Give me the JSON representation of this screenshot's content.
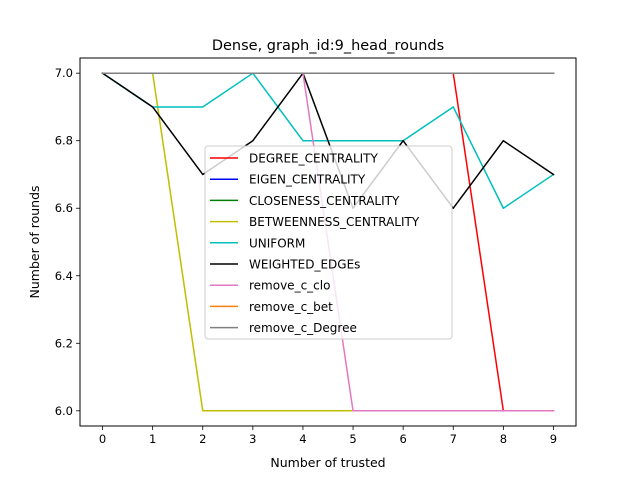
{
  "chart_data": {
    "type": "line",
    "title": "Dense, graph_id:9_head_rounds",
    "xlabel": "Number of trusted",
    "ylabel": "Number of rounds",
    "x": [
      0,
      1,
      2,
      3,
      4,
      5,
      6,
      7,
      8,
      9
    ],
    "xlim": [
      -0.45,
      9.45
    ],
    "ylim": [
      5.955,
      7.045
    ],
    "xticks": [
      "0",
      "1",
      "2",
      "3",
      "4",
      "5",
      "6",
      "7",
      "8",
      "9"
    ],
    "yticks": [
      "6.0",
      "6.2",
      "6.4",
      "6.6",
      "6.8",
      "7.0"
    ],
    "grid": false,
    "legend_position": "center",
    "series": [
      {
        "name": "DEGREE_CENTRALITY",
        "color": "#ff0000",
        "values": [
          7,
          7,
          7,
          7,
          7,
          7,
          7,
          7,
          6,
          6
        ]
      },
      {
        "name": "EIGEN_CENTRALITY",
        "color": "#0000ff",
        "values": [
          7,
          7,
          7,
          7,
          7,
          7,
          7,
          7,
          7,
          7
        ]
      },
      {
        "name": "CLOSENESS_CENTRALITY",
        "color": "#008000",
        "values": [
          7,
          7,
          7,
          7,
          7,
          7,
          7,
          7,
          7,
          7
        ]
      },
      {
        "name": "BETWEENNESS_CENTRALITY",
        "color": "#bfbf00",
        "values": [
          7,
          7,
          6,
          6,
          6,
          6,
          6,
          6,
          6,
          6
        ]
      },
      {
        "name": "UNIFORM",
        "color": "#00bfbf",
        "values": [
          7,
          6.9,
          6.9,
          7,
          6.8,
          6.8,
          6.8,
          6.9,
          6.6,
          6.7
        ]
      },
      {
        "name": "WEIGHTED_EDGEs",
        "color": "#000000",
        "values": [
          7,
          6.9,
          6.7,
          6.8,
          7,
          6.6,
          6.8,
          6.6,
          6.8,
          6.7
        ]
      },
      {
        "name": "remove_c_clo",
        "color": "#e377c2",
        "values": [
          7,
          7,
          7,
          7,
          7,
          6,
          6,
          6,
          6,
          6
        ]
      },
      {
        "name": "remove_c_bet",
        "color": "#ff7f0e",
        "values": [
          7,
          7,
          7,
          7,
          7,
          7,
          7,
          7,
          7,
          7
        ]
      },
      {
        "name": "remove_c_Degree",
        "color": "#7f7f7f",
        "values": [
          7,
          7,
          7,
          7,
          7,
          7,
          7,
          7,
          7,
          7
        ]
      }
    ]
  }
}
